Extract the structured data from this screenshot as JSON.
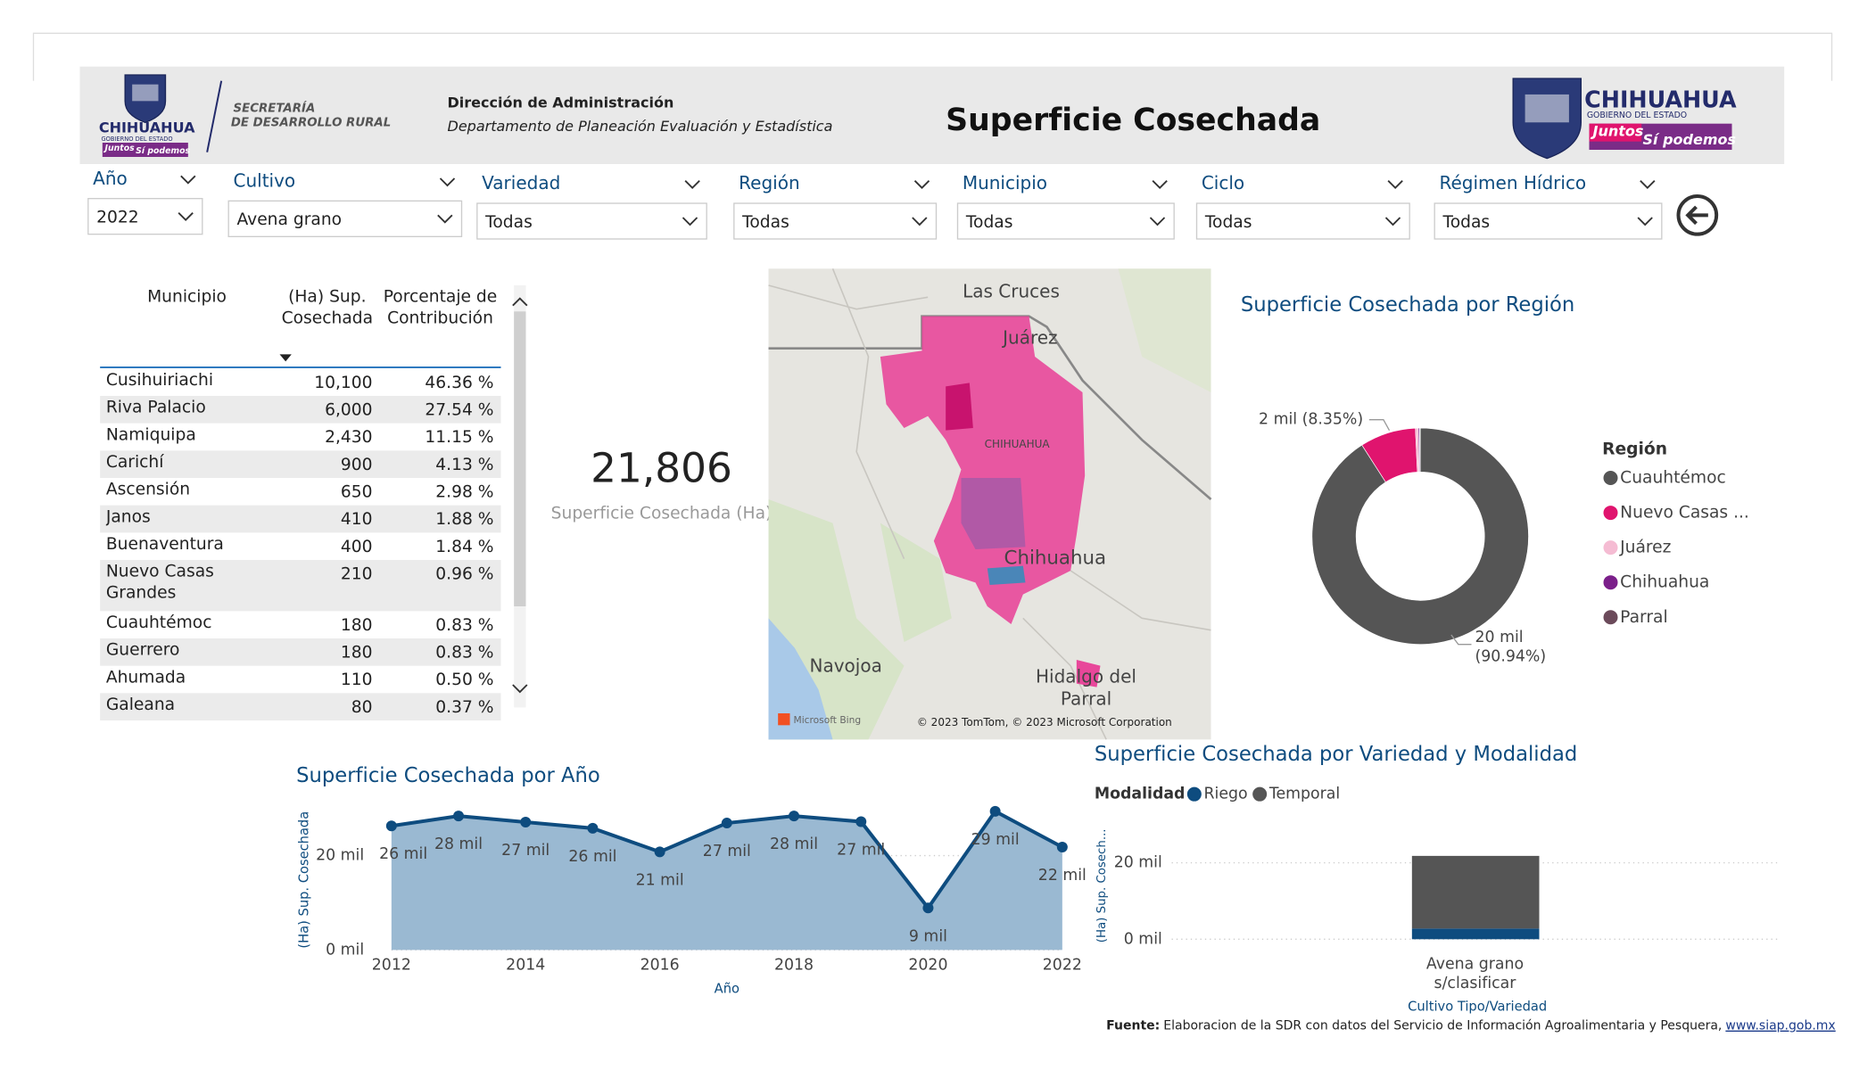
{
  "header": {
    "logo_left": {
      "name": "CHIHUAHUA",
      "subtitle": "GOBIERNO DEL ESTADO",
      "slogan_1": "Juntos",
      "slogan_2": "Sí podemos"
    },
    "secretaria": [
      "SECRETARÍA",
      "DE DESARROLLO RURAL"
    ],
    "direction": "Dirección de Administración",
    "department": "Departamento de Planeación Evaluación y Estadística",
    "title": "Superficie Cosechada",
    "logo_right": {
      "name": "CHIHUAHUA",
      "subtitle": "GOBIERNO DEL ESTADO",
      "slogan_1": "Juntos",
      "slogan_2": "Sí podemos"
    }
  },
  "filters": [
    {
      "label": "Año",
      "value": "2022"
    },
    {
      "label": "Cultivo",
      "value": "Avena grano"
    },
    {
      "label": "Variedad",
      "value": "Todas"
    },
    {
      "label": "Región",
      "value": "Todas"
    },
    {
      "label": "Municipio",
      "value": "Todas"
    },
    {
      "label": "Ciclo",
      "value": "Todas"
    },
    {
      "label": "Régimen Hídrico",
      "value": "Todas"
    }
  ],
  "table": {
    "columns": [
      "Municipio",
      "(Ha) Sup. Cosechada",
      "Porcentaje de Contribución"
    ],
    "rows": [
      [
        "Cusihuiriachi",
        "10,100",
        "46.36 %"
      ],
      [
        "Riva Palacio",
        "6,000",
        "27.54 %"
      ],
      [
        "Namiquipa",
        "2,430",
        "11.15 %"
      ],
      [
        "Carichí",
        "900",
        "4.13 %"
      ],
      [
        "Ascensión",
        "650",
        "2.98 %"
      ],
      [
        "Janos",
        "410",
        "1.88 %"
      ],
      [
        "Buenaventura",
        "400",
        "1.84 %"
      ],
      [
        "Nuevo Casas Grandes",
        "210",
        "0.96 %"
      ],
      [
        "Cuauhtémoc",
        "180",
        "0.83 %"
      ],
      [
        "Guerrero",
        "180",
        "0.83 %"
      ],
      [
        "Ahumada",
        "110",
        "0.50 %"
      ],
      [
        "Galeana",
        "80",
        "0.37 %"
      ]
    ]
  },
  "kpi": {
    "value": "21,806",
    "label": "Superficie Cosechada (Ha)"
  },
  "map": {
    "labels": [
      "Las Cruces",
      "Juárez",
      "CHIHUAHUA",
      "Chihuahua",
      "Navojoa",
      "Hidalgo del Parral"
    ],
    "provider": "Microsoft Bing",
    "attribution": "© 2023 TomTom, © 2023 Microsoft Corporation"
  },
  "chart_data": [
    {
      "type": "area",
      "title": "Superficie Cosechada por Año",
      "x_label": "Año",
      "y_label": "(Ha) Sup. Cosechada",
      "x": [
        2012,
        2013,
        2014,
        2015,
        2016,
        2017,
        2018,
        2019,
        2020,
        2021,
        2022
      ],
      "values": [
        26300,
        28400,
        27100,
        25800,
        20800,
        26900,
        28400,
        27200,
        8900,
        29400,
        21806
      ],
      "value_labels": [
        "26 mil",
        "28 mil",
        "27 mil",
        "26 mil",
        "21 mil",
        "27 mil",
        "28 mil",
        "27 mil",
        "9 mil",
        "29 mil",
        "22 mil"
      ],
      "xlim": [
        2012,
        2022
      ],
      "xticks": [
        2012,
        2014,
        2016,
        2018,
        2020,
        2022
      ],
      "ylim": [
        0,
        30000
      ],
      "yticks": [
        {
          "value": 0,
          "label": "0 mil"
        },
        {
          "value": 20000,
          "label": "20 mil"
        }
      ],
      "color": "#0e4c7f",
      "fill": "#9ab9d2",
      "grid": true
    },
    {
      "type": "donut",
      "title": "Superficie Cosechada por Región",
      "legend_title": "Región",
      "categories": [
        "Cuauhtémoc",
        "Nuevo Casas ...",
        "Juárez",
        "Chihuahua",
        "Parral"
      ],
      "values": [
        19830,
        1821,
        90,
        45,
        20
      ],
      "value_labels": [
        "20 mil (90.94%)",
        "2 mil (8.35%)",
        null,
        null,
        null
      ],
      "colors": [
        "#555555",
        "#e0146e",
        "#f5bcd3",
        "#7b1f8a",
        "#6b4a5a"
      ]
    },
    {
      "type": "stacked_bar",
      "title": "Superficie Cosechada por Variedad y Modalidad",
      "legend_title": "Modalidad",
      "x_label": "Cultivo Tipo/Variedad",
      "y_label": "(Ha) Sup. Cosech...",
      "categories": [
        "Avena grano s/clasificar"
      ],
      "series": [
        {
          "name": "Riego",
          "color": "#0e4c7f",
          "values": [
            2800
          ]
        },
        {
          "name": "Temporal",
          "color": "#555555",
          "values": [
            19006
          ]
        }
      ],
      "ylim": [
        0,
        28000
      ],
      "yticks": [
        {
          "value": 0,
          "label": "0 mil"
        },
        {
          "value": 20000,
          "label": "20 mil"
        }
      ],
      "grid": true
    }
  ],
  "footer": {
    "label": "Fuente:",
    "text": "Elaboracion de la SDR con datos del Servicio de Información Agroalimentaria y Pesquera,",
    "link": "www.siap.gob.mx"
  }
}
